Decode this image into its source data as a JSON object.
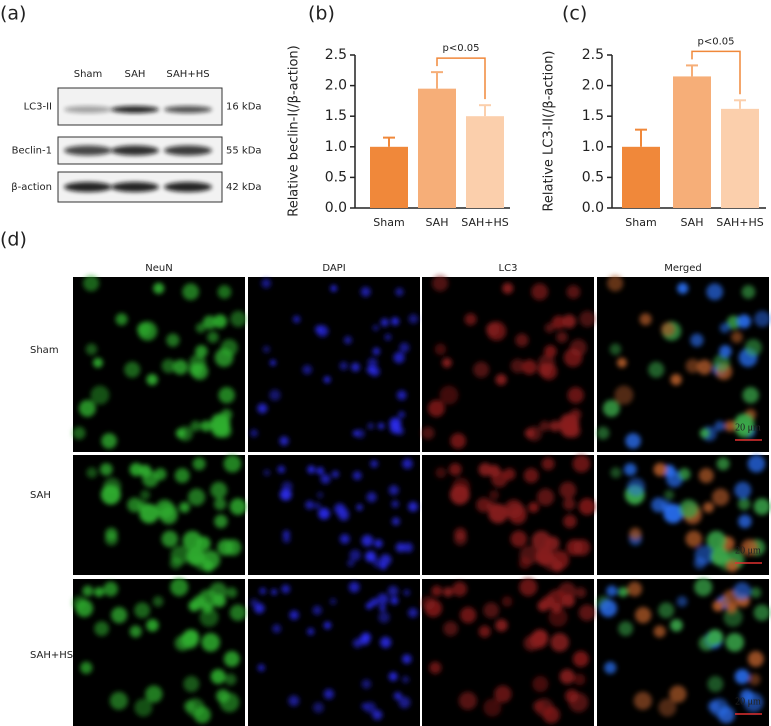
{
  "panel_labels": [
    "(a)",
    "(b)",
    "(c)",
    "(d)"
  ],
  "blot": {
    "lanes": [
      "Sham",
      "SAH",
      "SAH+HS"
    ],
    "rows": [
      {
        "label": "LC3-II",
        "size": "16 kDa"
      },
      {
        "label": "Beclin-1",
        "size": "55 kDa"
      },
      {
        "label": "β-action",
        "size": "42 kDa"
      }
    ]
  },
  "chart_data": [
    {
      "type": "bar",
      "ylabel": "Relative beclin-I(/β-action)",
      "categories": [
        "Sham",
        "SAH",
        "SAH+HS"
      ],
      "values": [
        1.0,
        1.95,
        1.5
      ],
      "errors": [
        0.15,
        0.27,
        0.18
      ],
      "colors": [
        "#f0883a",
        "#f6ae78",
        "#fbcfac"
      ],
      "ylim": [
        0,
        2.5
      ],
      "yticks": [
        {
          "value": 0,
          "label": "0.0"
        },
        0.5,
        {
          "value": 1,
          "label": "1.0"
        },
        1.5,
        {
          "value": 2,
          "label": "2.0"
        },
        2.5
      ],
      "annotation": "p<0.05"
    },
    {
      "type": "bar",
      "ylabel": "Relative LC3-II(/β-action)",
      "categories": [
        "Sham",
        "SAH",
        "SAH+HS"
      ],
      "values": [
        1.0,
        2.15,
        1.62
      ],
      "errors": [
        0.28,
        0.18,
        0.14
      ],
      "colors": [
        "#f0883a",
        "#f6ae78",
        "#fbcfac"
      ],
      "ylim": [
        0,
        2.5
      ],
      "yticks": [
        {
          "value": 0,
          "label": "0.0"
        },
        0.5,
        {
          "value": 1,
          "label": "1.0"
        },
        1.5,
        {
          "value": 2,
          "label": "2.0"
        },
        2.5
      ],
      "annotation": "p<0.05"
    }
  ],
  "microscopy": {
    "columns": [
      "NeuN",
      "DAPI",
      "LC3",
      "Merged"
    ],
    "rows": [
      "Sham",
      "SAH",
      "SAH+HS"
    ],
    "scale_bar": "20 μm"
  }
}
